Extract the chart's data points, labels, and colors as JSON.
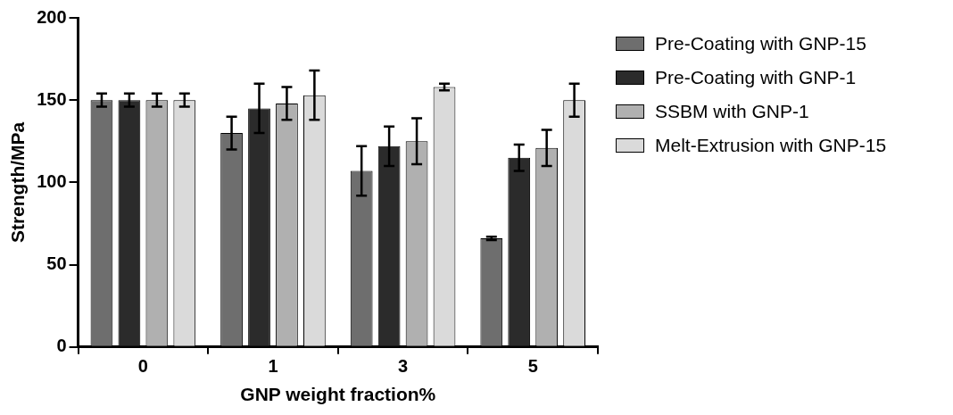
{
  "chart_data": {
    "type": "bar",
    "xlabel": "GNP weight fraction%",
    "ylabel": "Strength/MPa",
    "categories": [
      "0",
      "1",
      "3",
      "5"
    ],
    "series": [
      {
        "name": "Pre-Coating with GNP-15",
        "color": "#6e6e6e",
        "values": [
          150,
          130,
          107,
          66
        ],
        "errors": [
          4,
          10,
          15,
          1
        ]
      },
      {
        "name": "Pre-Coating with GNP-1",
        "color": "#2b2b2b",
        "values": [
          150,
          145,
          122,
          115
        ],
        "errors": [
          4,
          15,
          12,
          8
        ]
      },
      {
        "name": "SSBM with GNP-1",
        "color": "#b0b0b0",
        "values": [
          150,
          148,
          125,
          121
        ],
        "errors": [
          4,
          10,
          14,
          11
        ]
      },
      {
        "name": "Melt-Extrusion with GNP-15",
        "color": "#dadada",
        "values": [
          150,
          153,
          158,
          150
        ],
        "errors": [
          4,
          15,
          2,
          10
        ]
      }
    ],
    "ylim": [
      0,
      200
    ],
    "yticks": [
      0,
      50,
      100,
      150,
      200
    ],
    "grid": false,
    "legend": "right"
  }
}
